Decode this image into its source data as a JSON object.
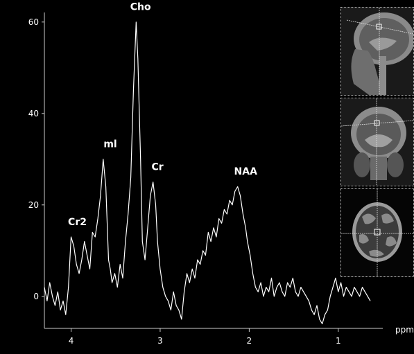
{
  "chart_data": {
    "type": "line",
    "xlabel": "ppm",
    "ylabel": "",
    "xlim": [
      4.3,
      0.5
    ],
    "ylim": [
      -7,
      63
    ],
    "x_ticks": [
      4,
      3,
      2,
      1
    ],
    "y_ticks": [
      0,
      20,
      40,
      60
    ],
    "grid": false,
    "series": [
      {
        "x": [
          4.3,
          4.27,
          4.24,
          4.21,
          4.18,
          4.15,
          4.12,
          4.09,
          4.06,
          4.03,
          4.0,
          3.97,
          3.94,
          3.91,
          3.88,
          3.85,
          3.82,
          3.79,
          3.76,
          3.73,
          3.7,
          3.67,
          3.64,
          3.61,
          3.58,
          3.56,
          3.54,
          3.51,
          3.48,
          3.45,
          3.42,
          3.39,
          3.36,
          3.33,
          3.3,
          3.27,
          3.25,
          3.22,
          3.2,
          3.17,
          3.14,
          3.11,
          3.08,
          3.05,
          3.03,
          3.0,
          2.97,
          2.94,
          2.91,
          2.88,
          2.85,
          2.82,
          2.79,
          2.76,
          2.73,
          2.7,
          2.67,
          2.64,
          2.61,
          2.58,
          2.55,
          2.52,
          2.49,
          2.46,
          2.43,
          2.4,
          2.37,
          2.34,
          2.31,
          2.28,
          2.25,
          2.22,
          2.19,
          2.16,
          2.13,
          2.1,
          2.07,
          2.04,
          2.02,
          1.99,
          1.96,
          1.93,
          1.9,
          1.87,
          1.84,
          1.81,
          1.78,
          1.75,
          1.72,
          1.69,
          1.66,
          1.63,
          1.6,
          1.57,
          1.54,
          1.51,
          1.48,
          1.45,
          1.42,
          1.39,
          1.36,
          1.33,
          1.3,
          1.27,
          1.24,
          1.21,
          1.18,
          1.15,
          1.12,
          1.09,
          1.06,
          1.03,
          1.0,
          0.97,
          0.94,
          0.91,
          0.88,
          0.85,
          0.82,
          0.79,
          0.76,
          0.73,
          0.7,
          0.67,
          0.64
        ],
        "y": [
          2,
          -1,
          3,
          0,
          -2,
          1,
          -3,
          -1,
          -4,
          2,
          13,
          11,
          7,
          5,
          8,
          12,
          9,
          6,
          14,
          13,
          17,
          22,
          30,
          24,
          8,
          6,
          3,
          5,
          2,
          7,
          4,
          12,
          18,
          26,
          45,
          60,
          52,
          30,
          12,
          8,
          15,
          22,
          25,
          20,
          12,
          6,
          2,
          0,
          -1,
          -3,
          1,
          -2,
          -3,
          -5,
          1,
          5,
          3,
          6,
          4,
          8,
          7,
          10,
          9,
          14,
          12,
          15,
          13,
          17,
          16,
          19,
          18,
          21,
          20,
          23,
          24,
          22,
          18,
          15,
          12,
          9,
          5,
          2,
          1,
          3,
          0,
          2,
          1,
          4,
          0,
          2,
          3,
          1,
          0,
          3,
          2,
          4,
          1,
          0,
          2,
          1,
          0,
          -1,
          -3,
          -4,
          -2,
          -5,
          -6,
          -4,
          -3,
          0,
          2,
          4,
          1,
          3,
          0,
          2,
          1,
          0,
          2,
          1,
          0,
          2,
          1,
          0,
          -1
        ]
      }
    ],
    "annotations": [
      {
        "text": "Cr2",
        "x": 3.93,
        "y": 15
      },
      {
        "text": "ml",
        "x": 3.56,
        "y": 32
      },
      {
        "text": "Cho",
        "x": 3.22,
        "y": 62
      },
      {
        "text": "Cr",
        "x": 3.03,
        "y": 27
      },
      {
        "text": "NAA",
        "x": 2.04,
        "y": 26
      }
    ]
  },
  "colors": {
    "background": "#000000",
    "trace": "#ffffff",
    "axis": "#cccccc"
  },
  "insets": [
    {
      "name": "sagittal-mri-image"
    },
    {
      "name": "coronal-mri-image"
    },
    {
      "name": "axial-mri-image"
    }
  ]
}
